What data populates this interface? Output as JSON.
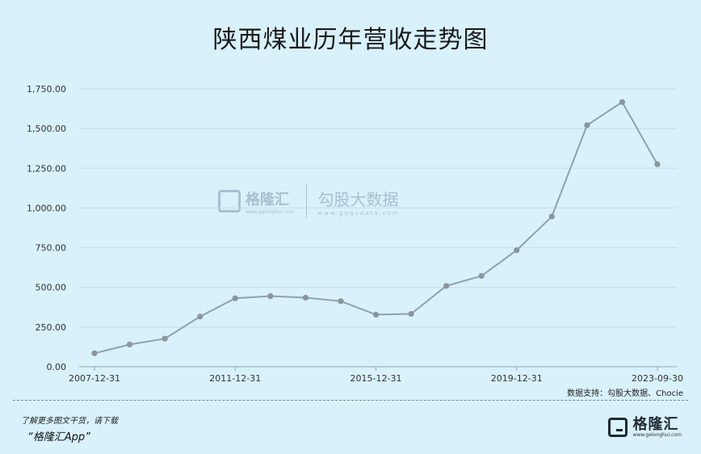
{
  "title": "陕西煤业历年营收走势图",
  "chart_data": {
    "type": "line",
    "title": "陕西煤业历年营收走势图",
    "x": [
      "2007-12-31",
      "2008-12-31",
      "2009-12-31",
      "2010-12-31",
      "2011-12-31",
      "2012-12-31",
      "2013-12-31",
      "2014-12-31",
      "2015-12-31",
      "2016-12-31",
      "2017-12-31",
      "2018-12-31",
      "2019-12-31",
      "2020-12-31",
      "2021-12-31",
      "2022-12-31",
      "2023-09-30"
    ],
    "x_tick_labels": [
      "2007-12-31",
      "2011-12-31",
      "2015-12-31",
      "2019-12-31",
      "2023-09-30"
    ],
    "series": [
      {
        "values": [
          85,
          140,
          177,
          316,
          431,
          445,
          435,
          413,
          328,
          333,
          509,
          572,
          734,
          946,
          1521,
          1667,
          1275
        ]
      }
    ],
    "y_tick_labels": [
      "0.00",
      "250.00",
      "500.00",
      "750.00",
      "1,000.00",
      "1,250.00",
      "1,500.00",
      "1,750.00"
    ],
    "ylim": [
      0,
      1750
    ],
    "grid": true,
    "line_color": "#8ea1ad",
    "marker_color": "#8a959c"
  },
  "source": "数据支持：勾股大数据、Chocie",
  "promo_line1": "了解更多图文干货，请下载",
  "promo_line2": "“格隆汇App”",
  "logo": {
    "name": "格隆汇",
    "url": "www.gelonghui.com"
  },
  "watermark": {
    "brand1": "格隆汇",
    "url1": "www.gelonghui.com",
    "brand2": "勾股大数据",
    "url2": "www.gogudata.com"
  }
}
